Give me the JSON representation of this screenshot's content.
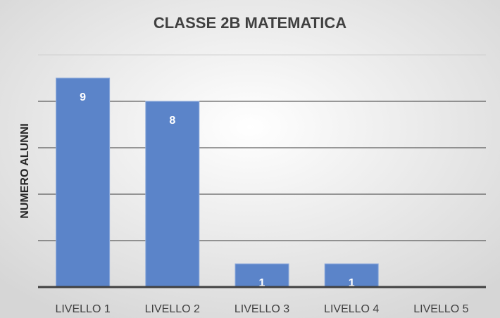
{
  "chart_data": {
    "type": "bar",
    "title": "CLASSE 2B MATEMATICA",
    "y_label": "NUMERO ALUNNI",
    "categories": [
      "LIVELLO 1",
      "LIVELLO 2",
      "LIVELLO 3",
      "LIVELLO 4",
      "LIVELLO 5"
    ],
    "values": [
      9,
      8,
      1,
      1,
      0
    ],
    "color": "#5b84c9",
    "ylim": [
      0,
      10
    ],
    "yticks": [
      0,
      2,
      4,
      6,
      8,
      10
    ],
    "grid": true
  }
}
